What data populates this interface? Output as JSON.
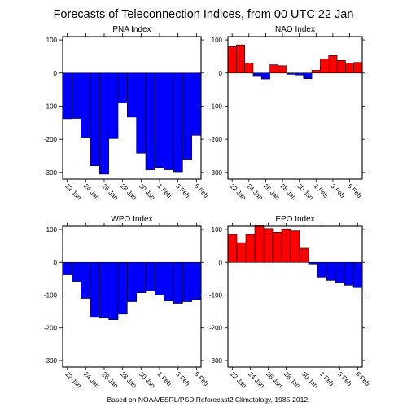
{
  "title": "Forecasts of Teleconnection Indices, from 00 UTC 22 Jan",
  "footer": "Based on NOAA/ESRL/PSD Reforecast2 Climatology, 1985-2012.",
  "colors": {
    "positive": "#ff0000",
    "negative": "#0000ff",
    "frame": "#000000"
  },
  "chart_data": [
    {
      "type": "bar",
      "title": "PNA Index",
      "ylim": [
        -320,
        110
      ],
      "yticks": [
        100,
        0,
        -100,
        -200,
        -300
      ],
      "xtick_labels": [
        "22 Jan",
        "24 Jan",
        "26 Jan",
        "28 Jan",
        "30 Jan",
        "1 Feb",
        "3 Feb",
        "5 Feb"
      ],
      "values": [
        -138,
        -137,
        -195,
        -280,
        -305,
        -198,
        -90,
        -133,
        -242,
        -292,
        -285,
        -292,
        -298,
        -260,
        -188
      ]
    },
    {
      "type": "bar",
      "title": "NAO Index",
      "ylim": [
        -320,
        110
      ],
      "yticks": [
        100,
        0,
        -100,
        -200,
        -300
      ],
      "xtick_labels": [
        "22 Jan",
        "24 Jan",
        "26 Jan",
        "28 Jan",
        "30 Jan",
        "1 Feb",
        "3 Feb",
        "5 Feb"
      ],
      "values": [
        80,
        85,
        30,
        -8,
        -18,
        25,
        22,
        -4,
        -6,
        -17,
        8,
        43,
        53,
        38,
        30,
        32
      ]
    },
    {
      "type": "bar",
      "title": "WPO Index",
      "ylim": [
        -320,
        110
      ],
      "yticks": [
        100,
        0,
        -100,
        -200,
        -300
      ],
      "xtick_labels": [
        "22 Jan",
        "24 Jan",
        "26 Jan",
        "28 Jan",
        "30 Jan",
        "1 Feb",
        "3 Feb",
        "5 Feb"
      ],
      "values": [
        -38,
        -58,
        -110,
        -168,
        -170,
        -175,
        -158,
        -120,
        -93,
        -87,
        -100,
        -118,
        -125,
        -120,
        -113
      ]
    },
    {
      "type": "bar",
      "title": "EPO Index",
      "ylim": [
        -320,
        110
      ],
      "yticks": [
        100,
        0,
        -100,
        -200,
        -300
      ],
      "xtick_labels": [
        "22 Jan",
        "24 Jan",
        "26 Jan",
        "28 Jan",
        "30 Jan",
        "1 Feb",
        "3 Feb",
        "5 Feb"
      ],
      "values": [
        85,
        60,
        85,
        113,
        103,
        92,
        102,
        96,
        43,
        -5,
        -45,
        -55,
        -63,
        -70,
        -77
      ]
    }
  ]
}
